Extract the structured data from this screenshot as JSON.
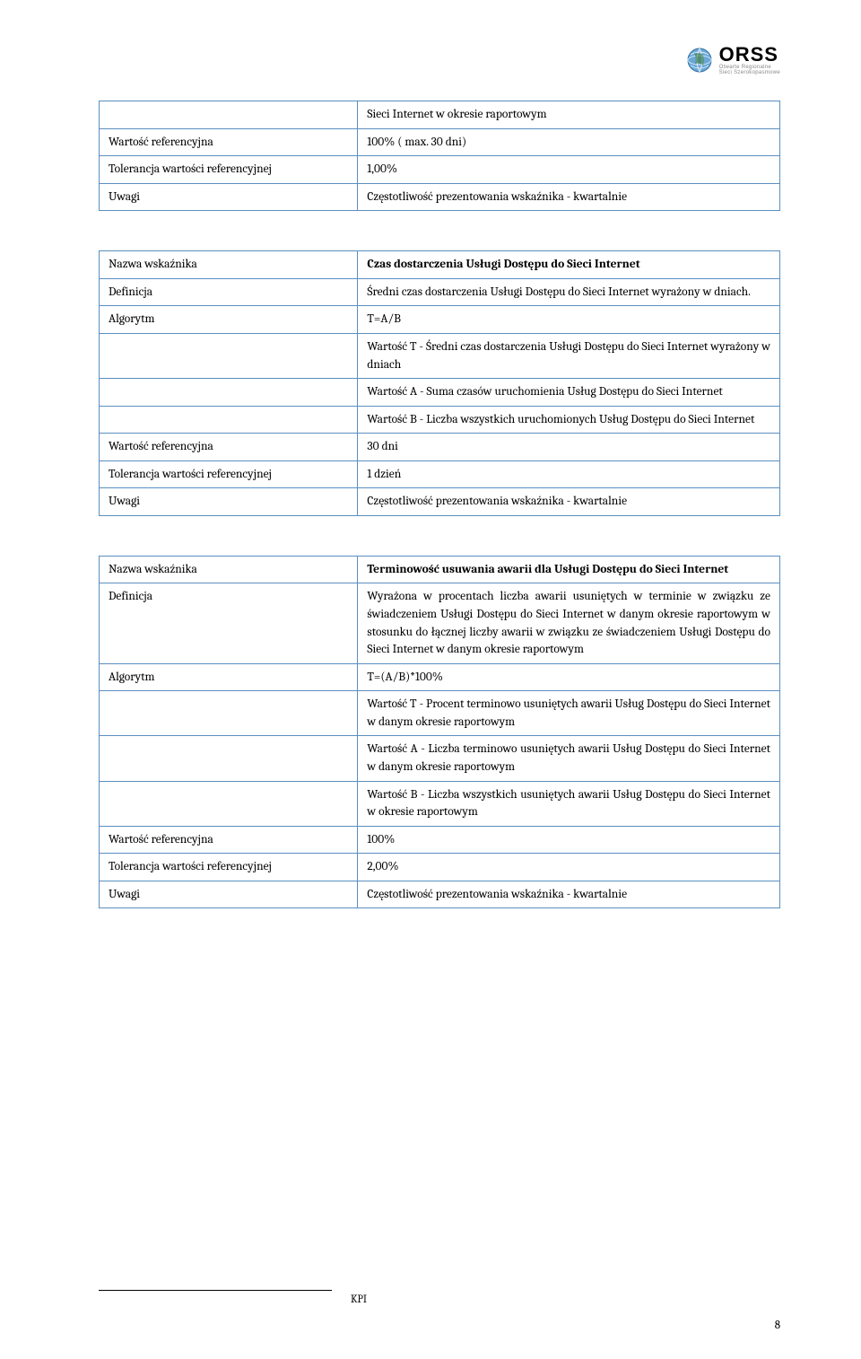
{
  "logo": {
    "main": "ORSS",
    "sub1": "Otwarte Regionalne",
    "sub2": "Sieci Szerokopasmowe"
  },
  "table1": {
    "rows": [
      {
        "label": "",
        "value": "Sieci Internet w okresie raportowym"
      },
      {
        "label": "Wartość referencyjna",
        "value": "100% ( max. 30 dni)"
      },
      {
        "label": "Tolerancja wartości referencyjnej",
        "value": "1,00%"
      },
      {
        "label": "Uwagi",
        "value": "Częstotliwość prezentowania wskaźnika - kwartalnie"
      }
    ]
  },
  "table2": {
    "rows": [
      {
        "label": "Nazwa wskaźnika",
        "value": "Czas dostarczenia Usługi Dostępu do Sieci Internet",
        "bold": true
      },
      {
        "label": "Definicja",
        "value": "Średni czas dostarczenia Usługi Dostępu do Sieci Internet wyrażony w dniach."
      },
      {
        "label": "Algorytm",
        "value": "T=A/B"
      },
      {
        "label": "",
        "value": "Wartość T - Średni czas dostarczenia Usługi Dostępu do Sieci Internet wyrażony w dniach"
      },
      {
        "label": "",
        "value": "Wartość A - Suma czasów uruchomienia Usług Dostępu do Sieci Internet"
      },
      {
        "label": "",
        "value": "Wartość B - Liczba wszystkich uruchomionych Usług Dostępu do Sieci Internet"
      },
      {
        "label": "Wartość referencyjna",
        "value": "30 dni"
      },
      {
        "label": "Tolerancja wartości referencyjnej",
        "value": "1 dzień"
      },
      {
        "label": "Uwagi",
        "value": "Częstotliwość prezentowania wskaźnika - kwartalnie"
      }
    ]
  },
  "table3": {
    "rows": [
      {
        "label": "Nazwa wskaźnika",
        "value": "Terminowość usuwania awarii dla Usługi Dostępu do Sieci Internet",
        "bold": true
      },
      {
        "label": "Definicja",
        "value": "Wyrażona w procentach liczba awarii usuniętych w terminie w związku ze świadczeniem Usługi Dostępu do Sieci Internet w danym okresie raportowym w stosunku do łącznej liczby awarii w związku ze świadczeniem Usługi Dostępu do Sieci Internet w danym okresie raportowym"
      },
      {
        "label": "Algorytm",
        "value": "T=(A/B)*100%"
      },
      {
        "label": "",
        "value": "Wartość T - Procent terminowo usuniętych awarii Usług Dostępu do Sieci Internet w danym okresie raportowym"
      },
      {
        "label": "",
        "value": "Wartość A - Liczba terminowo usuniętych awarii Usług Dostępu do Sieci Internet w danym okresie raportowym"
      },
      {
        "label": "",
        "value": "Wartość B - Liczba wszystkich usuniętych awarii Usług Dostępu do Sieci Internet w okresie raportowym"
      },
      {
        "label": "Wartość referencyjna",
        "value": "100%"
      },
      {
        "label": "Tolerancja wartości referencyjnej",
        "value": "2,00%"
      },
      {
        "label": "Uwagi",
        "value": "Częstotliwość prezentowania wskaźnika - kwartalnie"
      }
    ]
  },
  "footer": {
    "label": "KPI",
    "page": "8"
  },
  "colors": {
    "border": "#5a8fbf",
    "text": "#000000",
    "bg": "#ffffff"
  }
}
